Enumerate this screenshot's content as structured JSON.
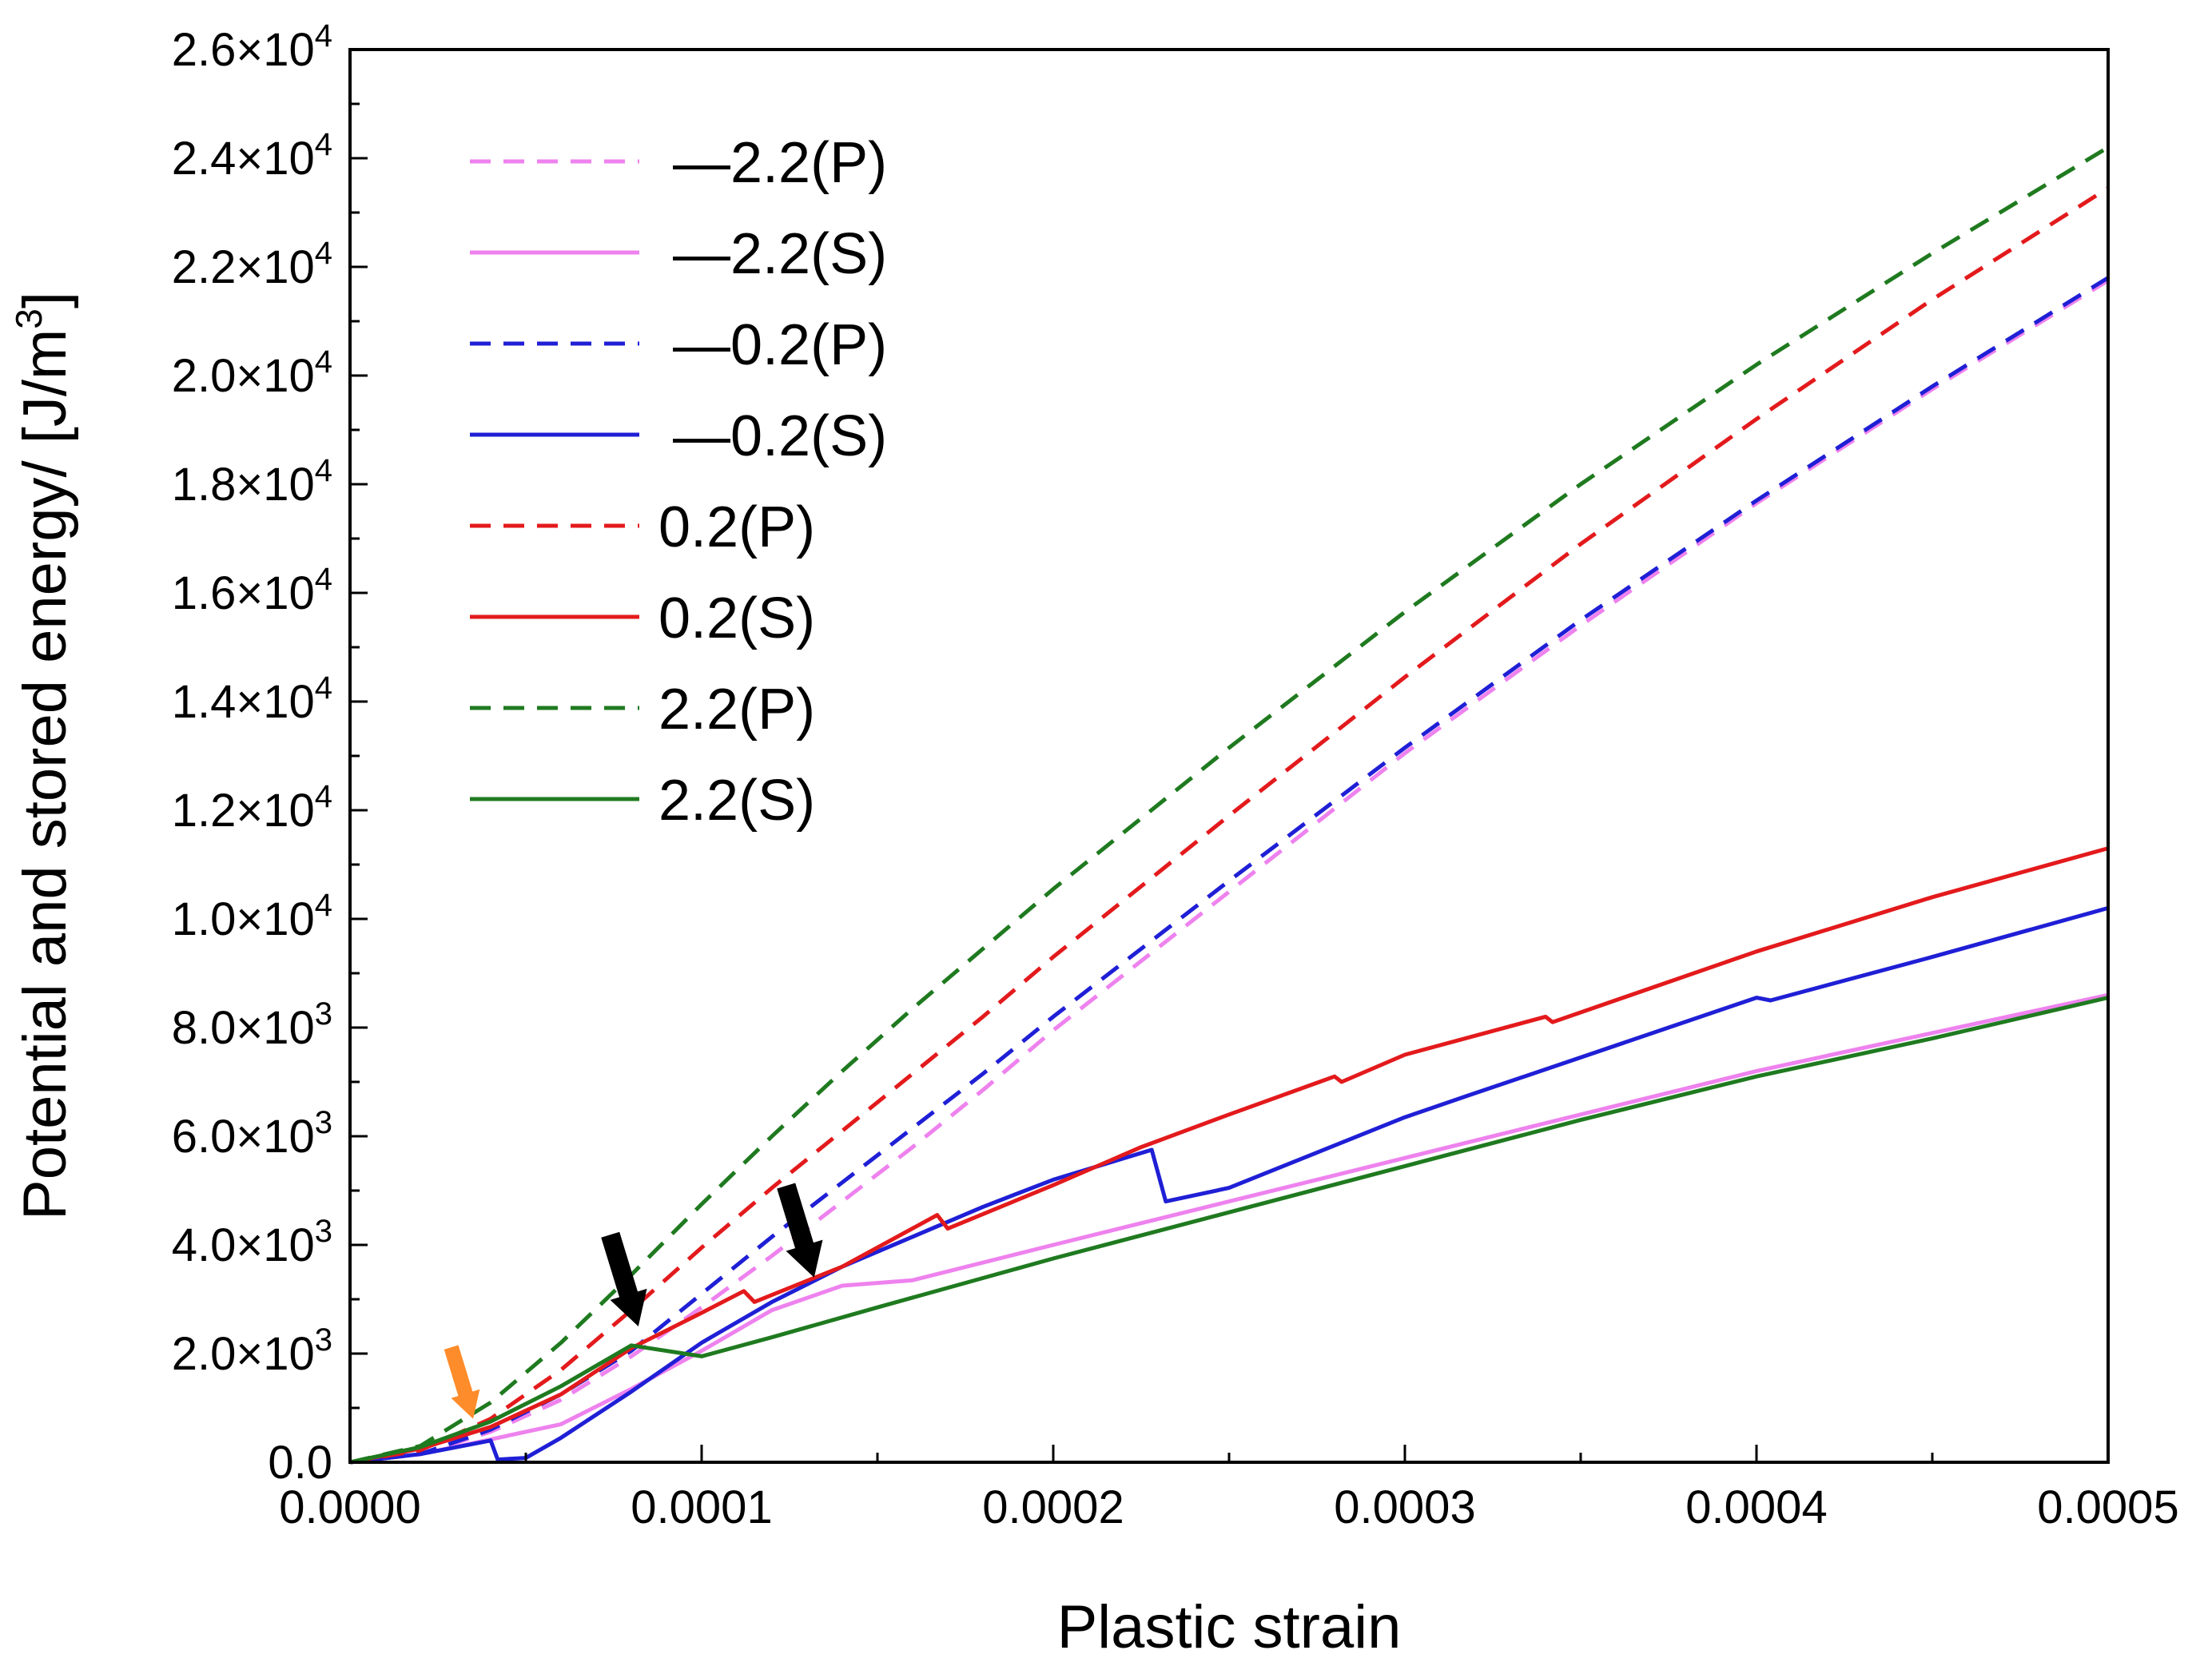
{
  "chart_data": {
    "type": "line",
    "title": "",
    "xlabel": "Plastic strain",
    "ylabel": "Potential and stored energy/ [J/m",
    "ylabel_sup": "3",
    "ylabel_close": "]",
    "xlim": [
      0,
      0.0005
    ],
    "ylim": [
      0,
      26000
    ],
    "grid": false,
    "legend_position": "top-left",
    "x_ticks": [
      0,
      0.0001,
      0.0002,
      0.0003,
      0.0004,
      0.0005
    ],
    "x_tick_labels": [
      "0.0000",
      "0.0001",
      "0.0002",
      "0.0003",
      "0.0004",
      "0.0005"
    ],
    "y_ticks": [
      0,
      2000,
      4000,
      6000,
      8000,
      10000,
      12000,
      14000,
      16000,
      18000,
      20000,
      22000,
      24000,
      26000
    ],
    "y_tick_labels": [
      {
        "mant": "0.0",
        "exp": ""
      },
      {
        "mant": "2.0×10",
        "exp": "3"
      },
      {
        "mant": "4.0×10",
        "exp": "3"
      },
      {
        "mant": "6.0×10",
        "exp": "3"
      },
      {
        "mant": "8.0×10",
        "exp": "3"
      },
      {
        "mant": "1.0×10",
        "exp": "4"
      },
      {
        "mant": "1.2×10",
        "exp": "4"
      },
      {
        "mant": "1.4×10",
        "exp": "4"
      },
      {
        "mant": "1.6×10",
        "exp": "4"
      },
      {
        "mant": "1.8×10",
        "exp": "4"
      },
      {
        "mant": "2.0×10",
        "exp": "4"
      },
      {
        "mant": "2.2×10",
        "exp": "4"
      },
      {
        "mant": "2.4×10",
        "exp": "4"
      },
      {
        "mant": "2.6×10",
        "exp": "4"
      }
    ],
    "series": [
      {
        "name": "—2.2(P)",
        "color": "#ee82ee",
        "dash": true,
        "x": [
          0,
          2e-05,
          4e-05,
          6e-05,
          8e-05,
          0.0001,
          0.00012,
          0.00014,
          0.00016,
          0.00018,
          0.0002,
          0.00025,
          0.0003,
          0.00035,
          0.0004,
          0.00045,
          0.0005
        ],
        "y": [
          0,
          150,
          560,
          1150,
          1950,
          2850,
          3800,
          4800,
          5800,
          6850,
          7950,
          10500,
          13050,
          15400,
          17650,
          19750,
          21750
        ]
      },
      {
        "name": "—2.2(S)",
        "color": "#ee82ee",
        "dash": false,
        "x": [
          0,
          2e-05,
          4e-05,
          6e-05,
          8e-05,
          0.0001,
          0.00012,
          0.00014,
          0.00016,
          0.0002,
          0.00025,
          0.0003,
          0.00035,
          0.0004,
          0.00045,
          0.0005
        ],
        "y": [
          0,
          150,
          420,
          700,
          1350,
          2050,
          2800,
          3250,
          3350,
          4000,
          4800,
          5600,
          6400,
          7200,
          7900,
          8600
        ]
      },
      {
        "name": "—0.2(P)",
        "color": "#1f1fd6",
        "dash": true,
        "x": [
          0,
          2e-05,
          4e-05,
          6e-05,
          8e-05,
          0.0001,
          0.00012,
          0.00014,
          0.00016,
          0.00018,
          0.0002,
          0.00025,
          0.0003,
          0.00035,
          0.0004,
          0.00045,
          0.0005
        ],
        "y": [
          0,
          150,
          600,
          1250,
          2050,
          3100,
          4150,
          5150,
          6150,
          7150,
          8200,
          10700,
          13150,
          15500,
          17700,
          19800,
          21800
        ]
      },
      {
        "name": "—0.2(S)",
        "color": "#1f1fd6",
        "dash": false,
        "x": [
          0,
          2e-05,
          4e-05,
          4.2e-05,
          5e-05,
          6e-05,
          8e-05,
          0.0001,
          0.00012,
          0.00014,
          0.00016,
          0.00018,
          0.0002,
          0.000228,
          0.000232,
          0.00025,
          0.0003,
          0.000318,
          0.00035,
          0.0004,
          0.000404,
          0.00045,
          0.0005
        ],
        "y": [
          0,
          150,
          400,
          50,
          80,
          450,
          1300,
          2200,
          2950,
          3600,
          4150,
          4700,
          5200,
          5750,
          4800,
          5050,
          6350,
          6750,
          7450,
          8550,
          8500,
          9300,
          10200
        ]
      },
      {
        "name": "0.2(P)",
        "color": "#e31a1c",
        "dash": true,
        "x": [
          0,
          2e-05,
          4e-05,
          6e-05,
          8e-05,
          0.0001,
          0.00012,
          0.00014,
          0.00016,
          0.00018,
          0.0002,
          0.00025,
          0.0003,
          0.00035,
          0.0004,
          0.00045,
          0.0005
        ],
        "y": [
          0,
          220,
          800,
          1700,
          2800,
          3950,
          5050,
          6100,
          7150,
          8200,
          9300,
          11900,
          14450,
          16900,
          19200,
          21400,
          23450
        ]
      },
      {
        "name": "0.2(S)",
        "color": "#e31a1c",
        "dash": false,
        "x": [
          0,
          2e-05,
          4e-05,
          6e-05,
          8e-05,
          0.0001,
          0.000112,
          0.000115,
          0.00014,
          0.000167,
          0.00017,
          0.0002,
          0.000225,
          0.00025,
          0.00028,
          0.000282,
          0.0003,
          0.00034,
          0.000342,
          0.0004,
          0.00045,
          0.0005
        ],
        "y": [
          0,
          250,
          650,
          1250,
          2100,
          2750,
          3150,
          2950,
          3600,
          4550,
          4300,
          5100,
          5800,
          6400,
          7100,
          7000,
          7500,
          8200,
          8100,
          9400,
          10400,
          11300
        ]
      },
      {
        "name": "2.2(P)",
        "color": "#1f7a1f",
        "dash": true,
        "x": [
          0,
          2e-05,
          4e-05,
          6e-05,
          8e-05,
          0.0001,
          0.00012,
          0.00014,
          0.00016,
          0.00018,
          0.0002,
          0.00025,
          0.0003,
          0.00035,
          0.0004,
          0.00045,
          0.0005
        ],
        "y": [
          0,
          300,
          1100,
          2200,
          3450,
          4750,
          6000,
          7200,
          8350,
          9450,
          10550,
          13150,
          15650,
          18000,
          20200,
          22250,
          24200
        ]
      },
      {
        "name": "2.2(S)",
        "color": "#1f7a1f",
        "dash": false,
        "x": [
          0,
          2e-05,
          4e-05,
          6e-05,
          8e-05,
          8.5e-05,
          0.0001,
          0.00012,
          0.00015,
          0.0002,
          0.00025,
          0.0003,
          0.00035,
          0.0004,
          0.00045,
          0.0005
        ],
        "y": [
          0,
          280,
          750,
          1400,
          2150,
          2100,
          1950,
          2300,
          2850,
          3750,
          4600,
          5450,
          6300,
          7100,
          7800,
          8550
        ]
      }
    ],
    "annotations": [
      {
        "type": "arrow",
        "color": "#ff8c2a",
        "points_to": [
          3.5e-05,
          800
        ]
      },
      {
        "type": "arrow",
        "color": "#000000",
        "points_to": [
          8.2e-05,
          2500
        ]
      },
      {
        "type": "arrow",
        "color": "#000000",
        "points_to": [
          0.000132,
          3400
        ]
      }
    ]
  }
}
